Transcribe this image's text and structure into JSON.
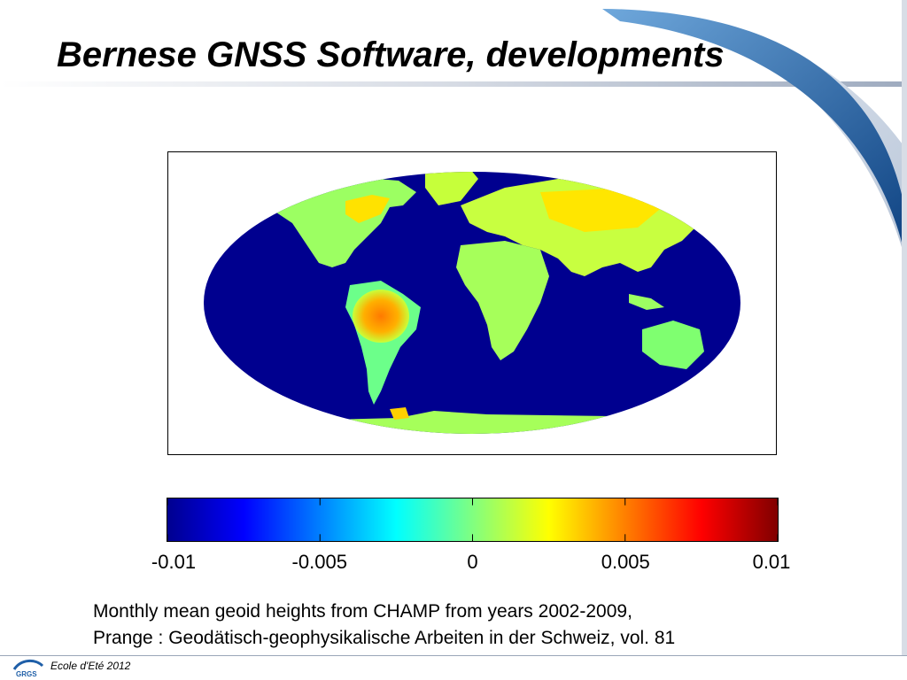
{
  "slide": {
    "title": "Bernese GNSS Software, developments",
    "caption_line1": "Monthly mean geoid heights from CHAMP from years 2002-2009,",
    "caption_line2": "Prange : Geodätisch-geophysikalische Arbeiten in der Schweiz, vol. 81",
    "footer_text": "Ecole d'Eté 2012",
    "logo_text": "GRGS"
  },
  "colors": {
    "accent_blue": "#1f5fa8",
    "ocean": "#00008f",
    "land_low": "#7fff7f",
    "land_high": "#ff7f00"
  },
  "chart_data": {
    "type": "heatmap",
    "description_map": "world-map",
    "colorbar": {
      "ticks": [
        -0.01,
        -0.005,
        0,
        0.005,
        0.01
      ],
      "tick_labels": [
        "-0.01",
        "-0.005",
        "0",
        "0.005",
        "0.01"
      ],
      "range": [
        -0.01,
        0.01
      ],
      "colormap": "jet"
    }
  }
}
